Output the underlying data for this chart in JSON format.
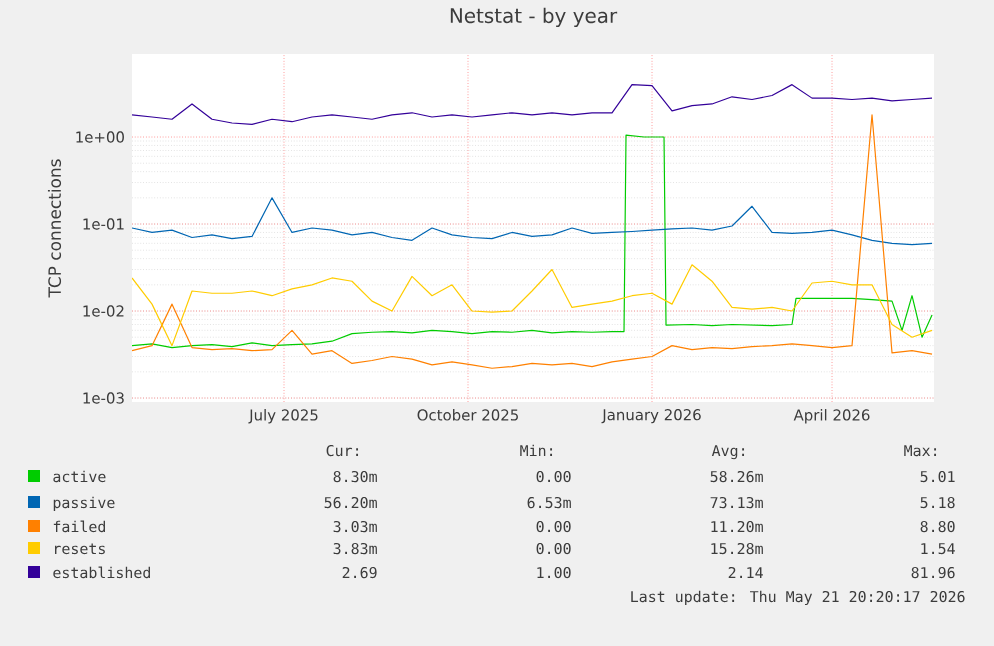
{
  "chart_data": {
    "type": "line",
    "title": "Netstat - by year",
    "ylabel": "TCP connections",
    "log": true,
    "grid": true,
    "legend": "bottom",
    "xlim": [
      "2025-04-16",
      "2026-05-22"
    ],
    "xticks": [
      {
        "value": "2025-07-01",
        "label": "July 2025"
      },
      {
        "value": "2025-10-01",
        "label": "October 2025"
      },
      {
        "value": "2026-01-01",
        "label": "January 2026"
      },
      {
        "value": "2026-04-01",
        "label": "April 2026"
      }
    ],
    "ylim": [
      0.0009,
      9
    ],
    "yticks": [
      {
        "value": 0.001,
        "label": "1e-03"
      },
      {
        "value": 0.01,
        "label": "1e-02"
      },
      {
        "value": 0.1,
        "label": "1e-01"
      },
      {
        "value": 1,
        "label": "1e+00"
      }
    ],
    "x": [
      "2025-04-16",
      "2025-04-26",
      "2025-05-06",
      "2025-05-16",
      "2025-05-26",
      "2025-06-05",
      "2025-06-15",
      "2025-06-25",
      "2025-07-05",
      "2025-07-15",
      "2025-07-25",
      "2025-08-04",
      "2025-08-14",
      "2025-08-24",
      "2025-09-03",
      "2025-09-13",
      "2025-09-23",
      "2025-10-03",
      "2025-10-13",
      "2025-10-23",
      "2025-11-02",
      "2025-11-12",
      "2025-11-22",
      "2025-12-02",
      "2025-12-12",
      "2025-12-22",
      "2026-01-01",
      "2026-01-11",
      "2026-01-21",
      "2026-01-31",
      "2026-02-10",
      "2026-02-20",
      "2026-03-02",
      "2026-03-12",
      "2026-03-22",
      "2026-04-01",
      "2026-04-11",
      "2026-04-21",
      "2026-05-01",
      "2026-05-11",
      "2026-05-21"
    ],
    "series": [
      {
        "name": "active",
        "color": "#00cc00",
        "x": [
          "2025-04-16",
          "2025-04-26",
          "2025-05-06",
          "2025-05-16",
          "2025-05-26",
          "2025-06-05",
          "2025-06-15",
          "2025-06-25",
          "2025-07-05",
          "2025-07-15",
          "2025-07-25",
          "2025-08-04",
          "2025-08-14",
          "2025-08-24",
          "2025-09-03",
          "2025-09-13",
          "2025-09-23",
          "2025-10-03",
          "2025-10-13",
          "2025-10-23",
          "2025-11-02",
          "2025-11-12",
          "2025-11-22",
          "2025-12-02",
          "2025-12-12",
          "2025-12-18",
          "2025-12-19",
          "2025-12-28",
          "2026-01-07",
          "2026-01-08",
          "2026-01-21",
          "2026-01-31",
          "2026-02-10",
          "2026-02-20",
          "2026-03-02",
          "2026-03-12",
          "2026-03-14",
          "2026-03-22",
          "2026-04-01",
          "2026-04-11",
          "2026-04-21",
          "2026-05-01",
          "2026-05-06",
          "2026-05-11",
          "2026-05-16",
          "2026-05-21"
        ],
        "values": [
          0.004,
          0.0042,
          0.0038,
          0.004,
          0.0041,
          0.0039,
          0.0043,
          0.004,
          0.0041,
          0.0042,
          0.0045,
          0.0055,
          0.0057,
          0.0058,
          0.0056,
          0.006,
          0.0058,
          0.0055,
          0.0058,
          0.0057,
          0.006,
          0.0056,
          0.0058,
          0.0057,
          0.0058,
          0.0058,
          1.05,
          1.0,
          1.0,
          0.0069,
          0.007,
          0.0068,
          0.007,
          0.0069,
          0.0068,
          0.007,
          0.014,
          0.014,
          0.014,
          0.014,
          0.0135,
          0.013,
          0.006,
          0.015,
          0.005,
          0.009
        ]
      },
      {
        "name": "passive",
        "color": "#0066b3",
        "values": [
          0.09,
          0.08,
          0.085,
          0.07,
          0.075,
          0.068,
          0.072,
          0.2,
          0.08,
          0.09,
          0.085,
          0.075,
          0.08,
          0.07,
          0.065,
          0.09,
          0.075,
          0.07,
          0.068,
          0.08,
          0.072,
          0.075,
          0.09,
          0.078,
          0.08,
          0.082,
          0.085,
          0.088,
          0.09,
          0.085,
          0.095,
          0.16,
          0.08,
          0.078,
          0.08,
          0.085,
          0.075,
          0.065,
          0.06,
          0.058,
          0.06
        ]
      },
      {
        "name": "failed",
        "color": "#ff8000",
        "values": [
          0.0035,
          0.004,
          0.012,
          0.0038,
          0.0036,
          0.0037,
          0.0035,
          0.0036,
          0.006,
          0.0032,
          0.0035,
          0.0025,
          0.0027,
          0.003,
          0.0028,
          0.0024,
          0.0026,
          0.0024,
          0.0022,
          0.0023,
          0.0025,
          0.0024,
          0.0025,
          0.0023,
          0.0026,
          0.0028,
          0.003,
          0.004,
          0.0036,
          0.0038,
          0.0037,
          0.0039,
          0.004,
          0.0042,
          0.004,
          0.0038,
          0.004,
          1.8,
          0.0033,
          0.0035,
          0.0032
        ]
      },
      {
        "name": "resets",
        "color": "#ffcc00",
        "values": [
          0.024,
          0.012,
          0.004,
          0.017,
          0.016,
          0.016,
          0.017,
          0.015,
          0.018,
          0.02,
          0.024,
          0.022,
          0.013,
          0.01,
          0.025,
          0.015,
          0.02,
          0.01,
          0.0097,
          0.01,
          0.017,
          0.03,
          0.011,
          0.012,
          0.013,
          0.015,
          0.016,
          0.012,
          0.034,
          0.022,
          0.011,
          0.0105,
          0.011,
          0.01,
          0.021,
          0.022,
          0.02,
          0.02,
          0.007,
          0.005,
          0.006
        ]
      },
      {
        "name": "established",
        "color": "#330099",
        "values": [
          1.8,
          1.7,
          1.6,
          2.4,
          1.6,
          1.45,
          1.4,
          1.6,
          1.5,
          1.7,
          1.8,
          1.7,
          1.6,
          1.8,
          1.9,
          1.7,
          1.8,
          1.7,
          1.8,
          1.9,
          1.8,
          1.9,
          1.8,
          1.9,
          1.9,
          4.0,
          3.9,
          2.0,
          2.3,
          2.4,
          2.9,
          2.7,
          3.0,
          4.0,
          2.8,
          2.8,
          2.7,
          2.8,
          2.6,
          2.7,
          2.8
        ]
      }
    ],
    "annotations": [
      "Cur:",
      "Min:",
      "Avg:",
      "Max:",
      "8.30m",
      "0.00",
      "58.26m",
      "5.01",
      "56.20m",
      "6.53m",
      "73.13m",
      "5.18",
      "3.03m",
      "0.00",
      "11.20m",
      "8.80",
      "3.83m",
      "0.00",
      "15.28m",
      "1.54",
      "2.69",
      "1.00",
      "2.14",
      "81.96",
      "Last update: Thu May 21 20:20:17 2026"
    ]
  }
}
